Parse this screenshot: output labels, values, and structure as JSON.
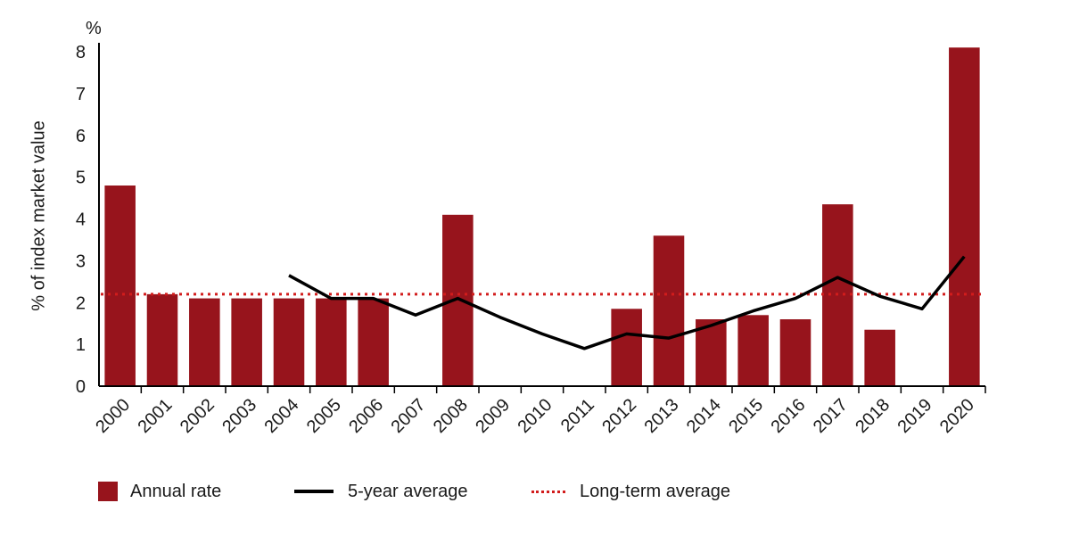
{
  "chart_data": {
    "type": "bar",
    "title": "",
    "ylabel": "% of index market value",
    "unit_label": "%",
    "ylim": [
      0,
      8
    ],
    "yticks": [
      "0",
      "1",
      "2",
      "3",
      "4",
      "5",
      "6",
      "7",
      "8"
    ],
    "categories": [
      "2000",
      "2001",
      "2002",
      "2003",
      "2004",
      "2005",
      "2006",
      "2007",
      "2008",
      "2009",
      "2010",
      "2011",
      "2012",
      "2013",
      "2014",
      "2015",
      "2016",
      "2017",
      "2018",
      "2019",
      "2020"
    ],
    "series": [
      {
        "name": "Annual rate",
        "type": "bar",
        "color": "#97141c",
        "values": [
          4.8,
          2.2,
          2.1,
          2.1,
          2.1,
          2.1,
          2.1,
          0,
          4.1,
          0,
          0,
          0,
          1.85,
          3.6,
          1.6,
          1.7,
          1.6,
          4.35,
          1.35,
          0,
          8.1
        ]
      },
      {
        "name": "5-year average",
        "type": "line",
        "color": "#000000",
        "values": [
          null,
          null,
          null,
          null,
          2.65,
          2.1,
          2.1,
          1.7,
          2.1,
          1.65,
          1.25,
          0.9,
          1.25,
          1.15,
          1.45,
          1.8,
          2.1,
          2.6,
          2.15,
          1.85,
          3.1
        ]
      },
      {
        "name": "Long-term average",
        "type": "reference-line",
        "color": "#d21c1c",
        "value": 2.2
      }
    ],
    "legend_position": "bottom-left",
    "grid": false
  }
}
